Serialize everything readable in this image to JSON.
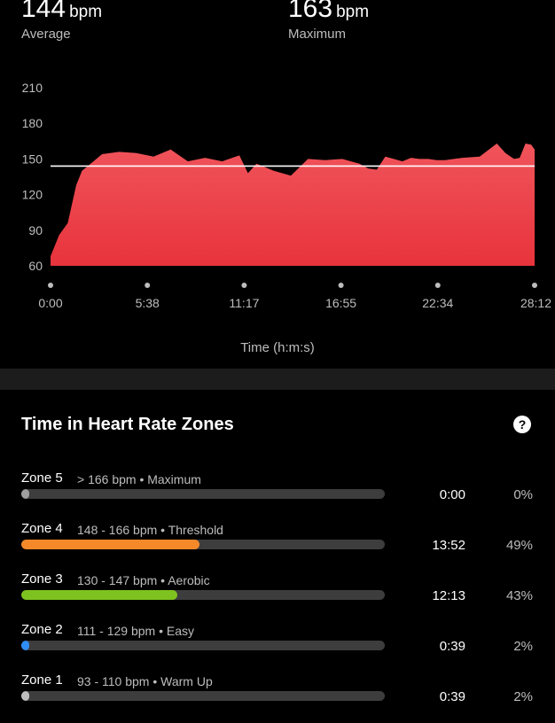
{
  "summary": {
    "average": {
      "value": "144",
      "unit": "bpm",
      "caption": "Average"
    },
    "maximum": {
      "value": "163",
      "unit": "bpm",
      "caption": "Maximum"
    }
  },
  "chart_data": {
    "type": "area",
    "xlabel": "Time (h:m:s)",
    "ylabel": "",
    "y_ticks": [
      "210",
      "180",
      "150",
      "120",
      "90",
      "60"
    ],
    "x_ticks": [
      "0:00",
      "5:38",
      "11:17",
      "16:55",
      "22:34",
      "28:12"
    ],
    "ylim": [
      60,
      210
    ],
    "xlim_seconds": [
      0,
      1692
    ],
    "average_line": 144,
    "fill_color": "#e8333c",
    "series": [
      {
        "x_seconds": [
          0,
          30,
          60,
          90,
          110,
          150,
          180,
          240,
          300,
          360,
          420,
          480,
          540,
          600,
          660,
          690,
          720,
          780,
          840,
          900,
          960,
          1020,
          1050,
          1080,
          1110,
          1140,
          1170,
          1200,
          1230,
          1260,
          1290,
          1320,
          1350,
          1380,
          1440,
          1500,
          1560,
          1590,
          1620,
          1640,
          1660,
          1680,
          1692
        ],
        "values": [
          68,
          86,
          96,
          128,
          140,
          148,
          154,
          156,
          155,
          152,
          158,
          148,
          151,
          148,
          153,
          138,
          146,
          140,
          136,
          150,
          149,
          150,
          148,
          146,
          142,
          141,
          152,
          150,
          148,
          151,
          150,
          150,
          149,
          149,
          151,
          152,
          163,
          155,
          150,
          151,
          163,
          162,
          158
        ]
      }
    ]
  },
  "zones_section": {
    "title": "Time in Heart Rate Zones",
    "help_label": "?"
  },
  "zones": [
    {
      "name": "Zone 5",
      "range": "> 166 bpm • Maximum",
      "time": "0:00",
      "percent": "0%",
      "fraction": 0.0,
      "color": "#9e9e9e"
    },
    {
      "name": "Zone 4",
      "range": "148 - 166 bpm • Threshold",
      "time": "13:52",
      "percent": "49%",
      "fraction": 0.49,
      "color": "#f5892a"
    },
    {
      "name": "Zone 3",
      "range": "130 - 147 bpm • Aerobic",
      "time": "12:13",
      "percent": "43%",
      "fraction": 0.43,
      "color": "#7ec21f"
    },
    {
      "name": "Zone 2",
      "range": "111 - 129 bpm • Easy",
      "time": "0:39",
      "percent": "2%",
      "fraction": 0.02,
      "color": "#2f8ef5"
    },
    {
      "name": "Zone 1",
      "range": "93 - 110 bpm • Warm Up",
      "time": "0:39",
      "percent": "2%",
      "fraction": 0.02,
      "color": "#bdbdbd"
    }
  ]
}
